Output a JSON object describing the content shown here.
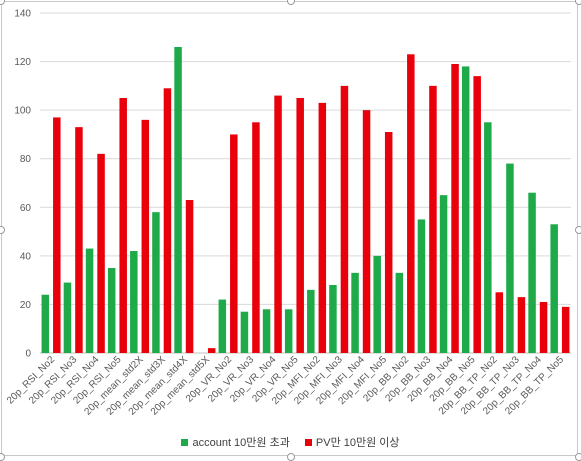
{
  "chart_data": {
    "type": "bar",
    "ylim": [
      0,
      140
    ],
    "yticks": [
      0,
      20,
      40,
      60,
      80,
      100,
      120,
      140
    ],
    "grid": true,
    "legend_position": "bottom",
    "categories": [
      "20p_RSI_No2",
      "20p_RSI_No3",
      "20p_RSI_No4",
      "20p_RSI_No5",
      "20p_mean_std2X",
      "20p_mean_std3X",
      "20p_mean_std4X",
      "20p_mean_std5X",
      "20p_VR_No2",
      "20p_VR_No3",
      "20p_VR_No4",
      "20p_VR_No5",
      "20p_MFI_No2",
      "20p_MFI_No3",
      "20p_MFI_No4",
      "20p_MFI_No5",
      "20p_BB_No2",
      "20p_BB_No3",
      "20p_BB_No4",
      "20p_BB_No5",
      "20p_BB_TP_No2",
      "20p_BB_TP_No3",
      "20p_BB_TP_No4",
      "20p_BB_TP_No5"
    ],
    "series": [
      {
        "name": "account 10만원 초과",
        "color": "#1faa4a",
        "values": [
          24,
          29,
          43,
          35,
          42,
          58,
          126,
          0,
          22,
          17,
          18,
          18,
          26,
          28,
          33,
          40,
          33,
          55,
          65,
          118,
          95,
          78,
          66,
          53
        ]
      },
      {
        "name": "PV만 10만원 이상",
        "color": "#e8000b",
        "values": [
          97,
          93,
          82,
          105,
          96,
          109,
          63,
          2,
          90,
          95,
          106,
          105,
          103,
          110,
          100,
          91,
          123,
          110,
          119,
          114,
          25,
          23,
          21,
          19
        ]
      }
    ]
  }
}
